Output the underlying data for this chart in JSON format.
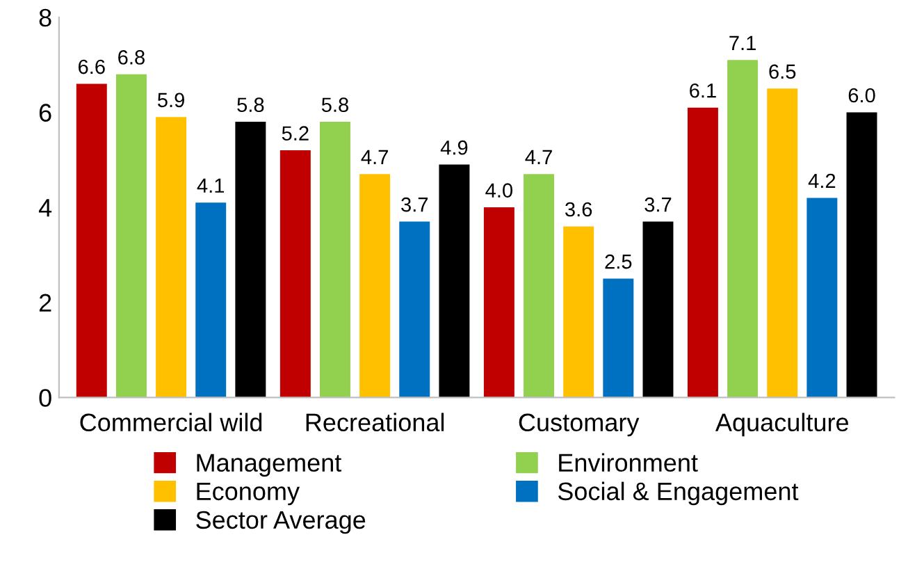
{
  "chart_data": {
    "type": "bar",
    "categories": [
      "Commercial wild",
      "Recreational",
      "Customary",
      "Aquaculture"
    ],
    "series": [
      {
        "name": "Management",
        "color": "#c00000",
        "values": [
          6.6,
          5.2,
          4.0,
          6.1
        ],
        "value_labels": [
          "6.6",
          "5.2",
          "4.0",
          "6.1"
        ]
      },
      {
        "name": "Environment",
        "color": "#92d050",
        "values": [
          6.8,
          5.8,
          4.7,
          7.1
        ],
        "value_labels": [
          "6.8",
          "5.8",
          "4.7",
          "7.1"
        ]
      },
      {
        "name": "Economy",
        "color": "#ffc000",
        "values": [
          5.9,
          4.7,
          3.6,
          6.5
        ],
        "value_labels": [
          "5.9",
          "4.7",
          "3.6",
          "6.5"
        ]
      },
      {
        "name": "Social & Engagement",
        "color": "#0070c0",
        "values": [
          4.1,
          3.7,
          2.5,
          4.2
        ],
        "value_labels": [
          "4.1",
          "3.7",
          "2.5",
          "4.2"
        ]
      },
      {
        "name": "Sector Average",
        "color": "#000000",
        "values": [
          5.8,
          4.9,
          3.7,
          6.0
        ],
        "value_labels": [
          "5.8",
          "4.9",
          "3.7",
          "6.0"
        ]
      }
    ],
    "ylim": [
      0,
      8
    ],
    "yticks": [
      0,
      2,
      4,
      6,
      8
    ],
    "grid": false,
    "legend": "bottom"
  }
}
